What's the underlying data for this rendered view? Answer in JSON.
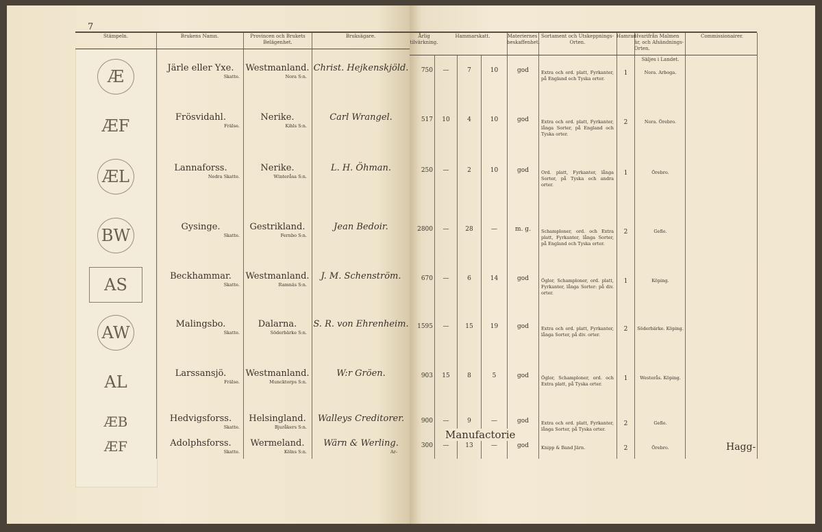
{
  "page_number": "7",
  "headers": {
    "stampeln": "Stämpeln.",
    "brukens_namn": "Brukens Namn.",
    "provincen": "Provincen och Brukets Belägenhet.",
    "bruksagare": "Bruksägare.",
    "arlig": "Årlig tilvärkning.",
    "hammarskatt": "Hammarskatt.",
    "materier": "Materiernes beskaffenhet.",
    "sortament": "Sortament och Utskeppnings-Orten.",
    "hamrar": "Hamrar.",
    "hvarifran": "Hvarifrån Malmen är, och Afsändnings-Orten.",
    "commission": "Commissionairer.",
    "saljes": "Säljes i Landet."
  },
  "rows": [
    {
      "stamp": "Æ",
      "name": "Järle eller Yxe.",
      "tenure": "Skatte.",
      "province": "Westmanland.",
      "parish": "Nora S:n.",
      "owner": "Christ. Hejkenskjöld.",
      "annual": "750",
      "c1": "—",
      "c2": "7",
      "c3": "10",
      "quality": "god",
      "sortament": "Extra och ord. platt, Fyrkanter, på England och Tyska orter.",
      "hamrar": "1",
      "origin": "Nora. Arboga."
    },
    {
      "stamp": "ÆF",
      "name": "Frösvidahl.",
      "tenure": "Frälse.",
      "province": "Nerike.",
      "parish": "Kihls S:n.",
      "owner": "Carl Wrangel.",
      "annual": "517",
      "c1": "10",
      "c2": "4",
      "c3": "10",
      "quality": "god",
      "sortament": "Extra och ord. platt, Fyrkanter, långa Sorter, på England och Tyska orter.",
      "hamrar": "2",
      "origin": "Nora. Örebro."
    },
    {
      "stamp": "ÆL",
      "name": "Lannaforss.",
      "tenure": "Nedra Skatte.",
      "province": "Nerike.",
      "parish": "Winteråsa S:n.",
      "owner": "L. H. Öhman.",
      "annual": "250",
      "c1": "—",
      "c2": "2",
      "c3": "10",
      "quality": "god",
      "sortament": "Ord. platt, Fyrkanter, långa Sorter, på Tyska och andra orter.",
      "hamrar": "1",
      "origin": "Örebro."
    },
    {
      "stamp": "BW",
      "name": "Gysinge.",
      "tenure": "Skatte.",
      "province": "Gestrikland.",
      "parish": "Fernbo S:n.",
      "owner": "Jean Bedoir.",
      "annual": "2800",
      "c1": "—",
      "c2": "28",
      "c3": "—",
      "quality": "m. g.",
      "sortament": "Schamploner, ord. och Extra platt, Fyrkanter, långa Sorter, på England och Tyska orter.",
      "hamrar": "2",
      "origin": "Gefle."
    },
    {
      "stamp": "AS",
      "name": "Beckhammar.",
      "tenure": "Skatte.",
      "province": "Westmanland.",
      "parish": "Ramnäs S:n.",
      "owner": "J. M. Schenström.",
      "annual": "670",
      "c1": "—",
      "c2": "6",
      "c3": "14",
      "quality": "god",
      "sortament": "Öglor, Schamploner, ord. platt, Fyrkanter, långa Sorter: på div. orter.",
      "hamrar": "1",
      "origin": "Köping."
    },
    {
      "stamp": "AW",
      "name": "Malingsbo.",
      "tenure": "Skatte.",
      "province": "Dalarna.",
      "parish": "Söderbärke S:n.",
      "owner": "S. R. von Ehrenheim.",
      "annual": "1595",
      "c1": "—",
      "c2": "15",
      "c3": "19",
      "quality": "god",
      "sortament": "Extra och ord. platt, Fyrkanter, långa Sorter, på div. orter.",
      "hamrar": "2",
      "origin": "Söderbärke. Köping."
    },
    {
      "stamp": "AL",
      "name": "Larssansjö.",
      "tenure": "Frälse.",
      "province": "Westmanland.",
      "parish": "Muncktorps S:n.",
      "owner": "W:r Gröen.",
      "annual": "903",
      "c1": "15",
      "c2": "8",
      "c3": "5",
      "quality": "god",
      "sortament": "Öglor, Schamploner, ord. och Extra platt, på Tyska orter.",
      "hamrar": "1",
      "origin": "Westerås. Köping."
    },
    {
      "stamp": "ÆB",
      "name": "Hedvigsforss.",
      "tenure": "Skatte.",
      "province": "Helsingland.",
      "parish": "Bjuråkers S:n.",
      "owner": "Walleys Creditorer.",
      "annual": "900",
      "c1": "—",
      "c2": "9",
      "c3": "—",
      "quality": "god",
      "sortament": "Extra och ord. platt, Fyrkanter, långa Sorter, på Tyska orter.",
      "hamrar": "2",
      "origin": "Gefle."
    },
    {
      "stamp": "ÆF",
      "name": "Adolphsforss.",
      "tenure": "Skatte.",
      "province": "Wermeland.",
      "parish": "Kölns S:n.",
      "owner": "Wärn & Werling.",
      "owner_note": "Ar-",
      "annual": "300",
      "c1": "—",
      "c2": "13",
      "c3": "—",
      "quality": "god",
      "sortament": "Knipp & Band Järn.",
      "hamrar": "2",
      "origin": "Örebro."
    }
  ],
  "manufactorie_label": "Manufactorie",
  "catchword": "Hagg-"
}
